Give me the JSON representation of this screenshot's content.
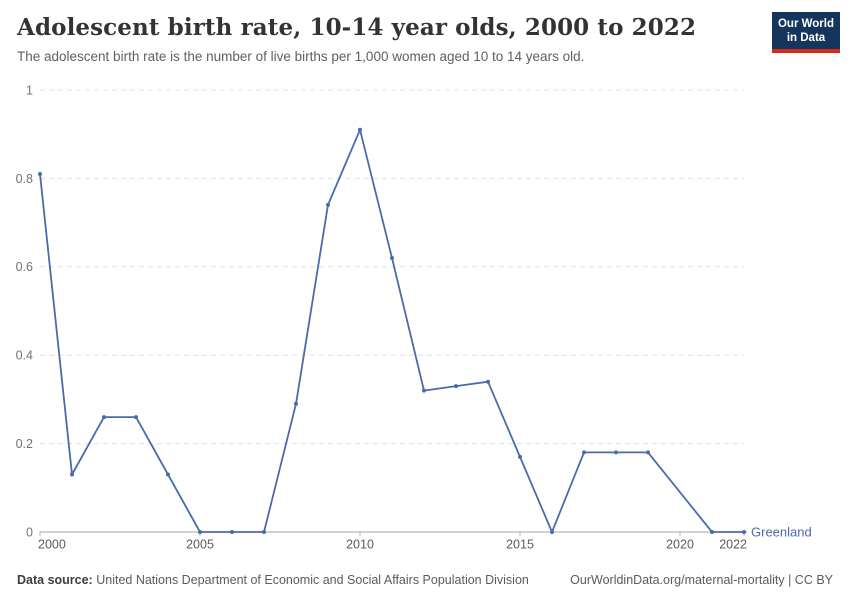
{
  "header": {
    "title": "Adolescent birth rate, 10-14 year olds, 2000 to 2022",
    "subtitle": "The adolescent birth rate is the number of live births per 1,000 women aged 10 to 14 years old.",
    "logo": {
      "line1": "Our World",
      "line2": "in Data"
    }
  },
  "chart_data": {
    "type": "line",
    "title": "Adolescent birth rate, 10-14 year olds, 2000 to 2022",
    "xlabel": "",
    "ylabel": "",
    "x": [
      2000,
      2001,
      2002,
      2003,
      2004,
      2005,
      2006,
      2007,
      2008,
      2009,
      2010,
      2011,
      2012,
      2013,
      2014,
      2015,
      2016,
      2017,
      2018,
      2019,
      2020,
      2021,
      2022
    ],
    "series": [
      {
        "name": "Greenland",
        "color": "#4a6bab",
        "values": [
          0.81,
          0.13,
          0.26,
          0.26,
          0.13,
          0,
          0,
          0,
          0.29,
          0.74,
          0.91,
          0.62,
          0.32,
          0.33,
          0.34,
          0.17,
          0,
          0.18,
          0.18,
          0.18,
          null,
          0,
          0
        ]
      }
    ],
    "ylim": [
      0,
      1
    ],
    "xlim": [
      2000,
      2022
    ],
    "yticks": [
      0,
      0.2,
      0.4,
      0.6,
      0.8,
      1
    ],
    "ytick_labels": [
      "0",
      "0.2",
      "0.4",
      "0.6",
      "0.8",
      "1"
    ],
    "xticks": [
      2000,
      2005,
      2010,
      2015,
      2020,
      2022
    ],
    "xtick_labels": [
      "2000",
      "2005",
      "2010",
      "2015",
      "2020",
      "2022"
    ],
    "grid": "horizontal-dashed",
    "legend_position": "end-of-line"
  },
  "footer": {
    "datasource_label": "Data source:",
    "datasource": "United Nations Department of Economic and Social Affairs Population Division",
    "link": "OurWorldinData.org/maternal-mortality | CC BY"
  },
  "colors": {
    "line": "#4a6bab",
    "gridline": "#e0e0e0",
    "zero_axis": "#a5a5a5",
    "tick_mark": "#b0b0b0",
    "ytick_text": "#737373",
    "xtick_text": "#5c5c5c",
    "title_text": "#333333",
    "subtitle_text": "#606060",
    "logo_bg": "#14355c",
    "logo_stripe": "#d5291f"
  }
}
